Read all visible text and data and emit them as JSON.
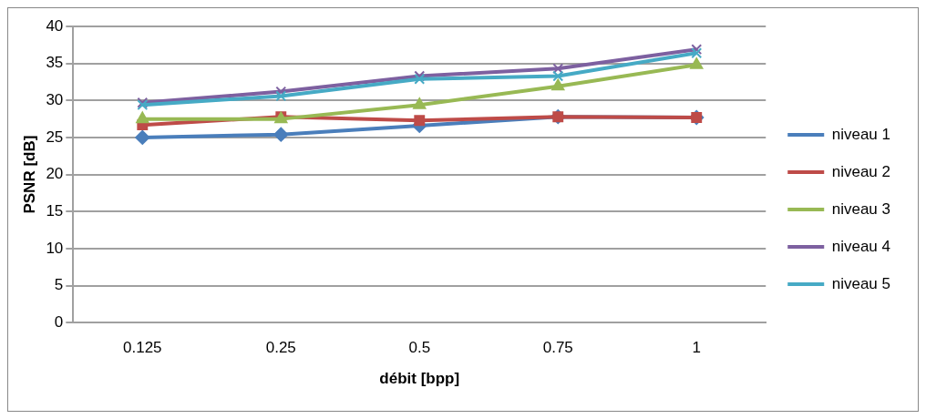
{
  "chart_data": {
    "type": "line",
    "xlabel": "débit [bpp]",
    "ylabel": "PSNR [dB]",
    "categories": [
      "0.125",
      "0.25",
      "0.5",
      "0.75",
      "1"
    ],
    "series": [
      {
        "name": "niveau 1",
        "color": "#4a7ebb",
        "marker": "diamond",
        "values": [
          25.0,
          25.4,
          26.6,
          27.8,
          27.7
        ]
      },
      {
        "name": "niveau 2",
        "color": "#be4b48",
        "marker": "square",
        "values": [
          26.7,
          27.8,
          27.3,
          27.8,
          27.7
        ]
      },
      {
        "name": "niveau 3",
        "color": "#98b954",
        "marker": "triangle",
        "values": [
          27.5,
          27.5,
          29.4,
          31.9,
          34.8
        ]
      },
      {
        "name": "niveau 4",
        "color": "#7d60a0",
        "marker": "cross",
        "values": [
          29.7,
          31.2,
          33.3,
          34.3,
          36.9
        ]
      },
      {
        "name": "niveau 5",
        "color": "#46aac5",
        "marker": "cross",
        "values": [
          29.4,
          30.6,
          32.9,
          33.3,
          36.4
        ]
      }
    ],
    "ylim": [
      0,
      40
    ],
    "yticks": [
      0,
      5,
      10,
      15,
      20,
      25,
      30,
      35,
      40
    ],
    "grid": "y",
    "legend": "right",
    "line_style": "solid"
  }
}
